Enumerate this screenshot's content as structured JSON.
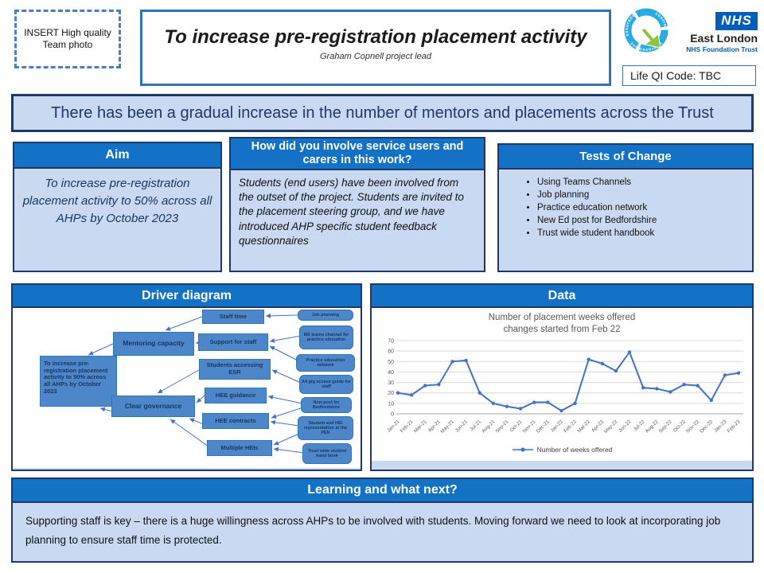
{
  "poster": {
    "photo_placeholder": "INSERT High quality Team photo",
    "title": "To increase pre-registration placement activity",
    "subtitle": "Graham Copnell project lead",
    "life_qi_code": "Life QI Code: TBC",
    "banner": "There has been a gradual increase in the number of mentors and placements across the Trust"
  },
  "logo": {
    "nhs": "NHS",
    "org": "East London",
    "org_sub": "NHS Foundation Trust",
    "qi_words": {
      "top": "assurance",
      "right": "control",
      "left": "improvement"
    }
  },
  "aim": {
    "title": "Aim",
    "body": "To increase pre-registration placement activity to 50% across all AHPs by October 2023"
  },
  "involvement": {
    "title": "How did you involve service users and carers in this work?",
    "body": "Students (end users) have been involved from the outset of the project. Students are invited to the placement steering group, and we have introduced AHP specific student feedback questionnaires"
  },
  "tests_of_change": {
    "title": "Tests of Change",
    "items": [
      "Using Teams Channels",
      "Job planning",
      "Practice education network",
      "New Ed post for Bedfordshire",
      "Trust wide student handbook"
    ]
  },
  "driver_diagram": {
    "title": "Driver diagram",
    "aim_node": "To increase pre-registration placement activity to 50% across all AHPs by October 2023",
    "primary_drivers": [
      "Mentoring capacity",
      "Clear governance"
    ],
    "secondary_drivers": [
      "Staff time",
      "Support for staff",
      "Students accessing ESR",
      "HEE guidance",
      "HEE contracts",
      "Multiple HEIs"
    ],
    "change_ideas": [
      "Job planning",
      "MS teams channel for practice education",
      "Practice education network",
      "A4 gig access guide for staff",
      "New post for Bedfordshire",
      "Student and HEI representation at the PEN",
      "Trust wide student hand book"
    ]
  },
  "data_section": {
    "title": "Data"
  },
  "chart_data": {
    "type": "line",
    "title": "Number of placement weeks offered changes started from Feb 22",
    "title_lines": [
      "Number of placement weeks offered",
      "changes started from Feb 22"
    ],
    "x": [
      "Jan-21",
      "Feb-21",
      "Mar-21",
      "Apr-21",
      "May-21",
      "Jun-21",
      "Jul-21",
      "Aug-21",
      "Sep-21",
      "Oct-21",
      "Nov-21",
      "Dec-21",
      "Jan-22",
      "Feb-22",
      "Mar-22",
      "Apr-22",
      "May-22",
      "Jun-22",
      "Jul-22",
      "Aug-22",
      "Sep-22",
      "Oct-22",
      "Nov-22",
      "Dec-22",
      "Jan-23",
      "Feb-23"
    ],
    "series": [
      {
        "name": "Number of weeks offered",
        "values": [
          20,
          18,
          27,
          28,
          50,
          51,
          20,
          10,
          7,
          5,
          11,
          11,
          3,
          10,
          52,
          48,
          41,
          59,
          25,
          24,
          21,
          28,
          27,
          13,
          37,
          39
        ]
      }
    ],
    "ylim": [
      0,
      70
    ],
    "y_ticks": [
      0,
      10,
      20,
      30,
      40,
      50,
      60,
      70
    ],
    "xlabel": "",
    "ylabel": "",
    "grid": true,
    "legend_position": "bottom",
    "line_color": "#4472C4"
  },
  "learning": {
    "title": "Learning and what next?",
    "body": "Supporting staff is key – there is a huge willingness across AHPs to be involved with students. Moving forward we need to look at incorporating job planning to ensure staff time is protected."
  },
  "colors": {
    "header_blue": "#1371C6",
    "panel_fill": "#C9D9F1",
    "border_navy": "#1F3864",
    "node_blue": "#4E87C9",
    "nhs_blue": "#005EB8",
    "qi_cyan": "#29ABE2",
    "qi_green": "#8CC63F",
    "chart_line": "#4472C4"
  }
}
